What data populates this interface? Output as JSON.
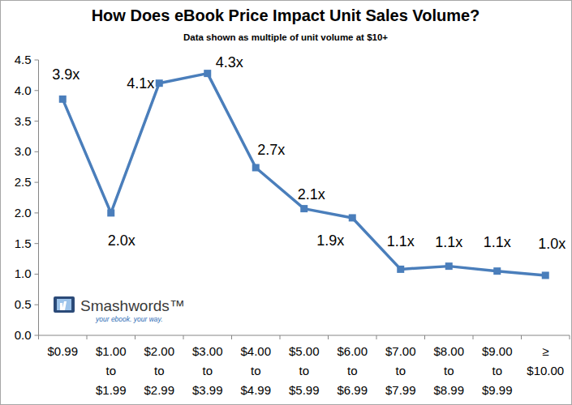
{
  "chart_data": {
    "type": "line",
    "title": "How Does eBook Price Impact Unit Sales Volume?",
    "subtitle": "Data shown as multiple of unit volume at $10+",
    "categories": [
      "$0.99",
      "$1.00\nto\n$1.99",
      "$2.00\nto\n$2.99",
      "$3.00\nto\n$3.99",
      "$4.00\nto\n$4.99",
      "$5.00\nto\n$5.99",
      "$6.00\nto\n$6.99",
      "$7.00\nto\n$7.99",
      "$8.00\nto\n$8.99",
      "$9.00\nto\n$9.99",
      "≥\n$10.00"
    ],
    "values": [
      3.86,
      2.0,
      4.12,
      4.28,
      2.74,
      2.07,
      1.92,
      1.08,
      1.13,
      1.05,
      0.98
    ],
    "value_labels": [
      "3.9x",
      "2.0x",
      "4.1x",
      "4.3x",
      "2.7x",
      "2.1x",
      "1.9x",
      "1.1x",
      "1.1x",
      "1.1x",
      "1.0x"
    ],
    "color": "#4a7ebb",
    "marker": "square",
    "line_style": "solid",
    "data_labels": true,
    "grid": false,
    "ylim": [
      0,
      4.5
    ],
    "yticks": [
      {
        "value": 0,
        "label": "0.0"
      },
      0.5,
      {
        "value": 1,
        "label": "1.0"
      },
      1.5,
      {
        "value": 2,
        "label": "2.0"
      },
      2.5,
      {
        "value": 3,
        "label": "3.0"
      },
      3.5,
      {
        "value": 4,
        "label": "4.0"
      },
      4.5
    ],
    "annotations": [
      "Smashwords™",
      "your ebook. your way."
    ]
  }
}
